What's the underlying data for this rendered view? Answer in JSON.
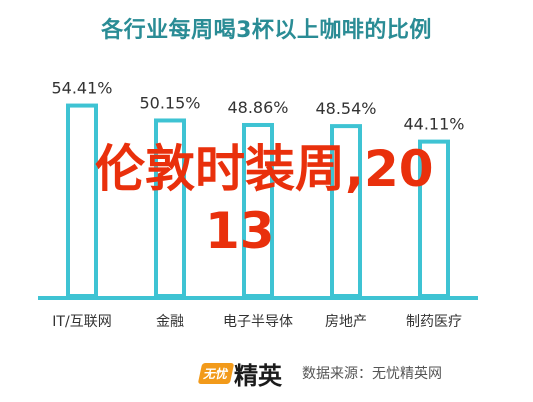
{
  "chart_data": {
    "type": "bar",
    "title": "各行业每周喝3杯以上咖啡的比例",
    "categories": [
      "IT/互联网",
      "金融",
      "电子半导体",
      "房地产",
      "制药医疗"
    ],
    "values": [
      54.41,
      50.15,
      48.86,
      48.54,
      44.11
    ],
    "value_labels": [
      "54.41%",
      "50.15%",
      "48.86%",
      "48.54%",
      "44.11%"
    ],
    "ylim": [
      0,
      60
    ],
    "grid": false,
    "colors": {
      "bar_stroke": "#3ec3d3",
      "bar_fill": "#ffffff",
      "axis": "#3ec3d3",
      "title": "#2a8c95"
    }
  },
  "overlay_text": {
    "line1": "伦敦时装周,20",
    "line2": "13",
    "color": "#e9300c"
  },
  "footer": {
    "logo_mark": "无忧",
    "logo_text": "精英",
    "source": "数据来源：无忧精英网"
  }
}
